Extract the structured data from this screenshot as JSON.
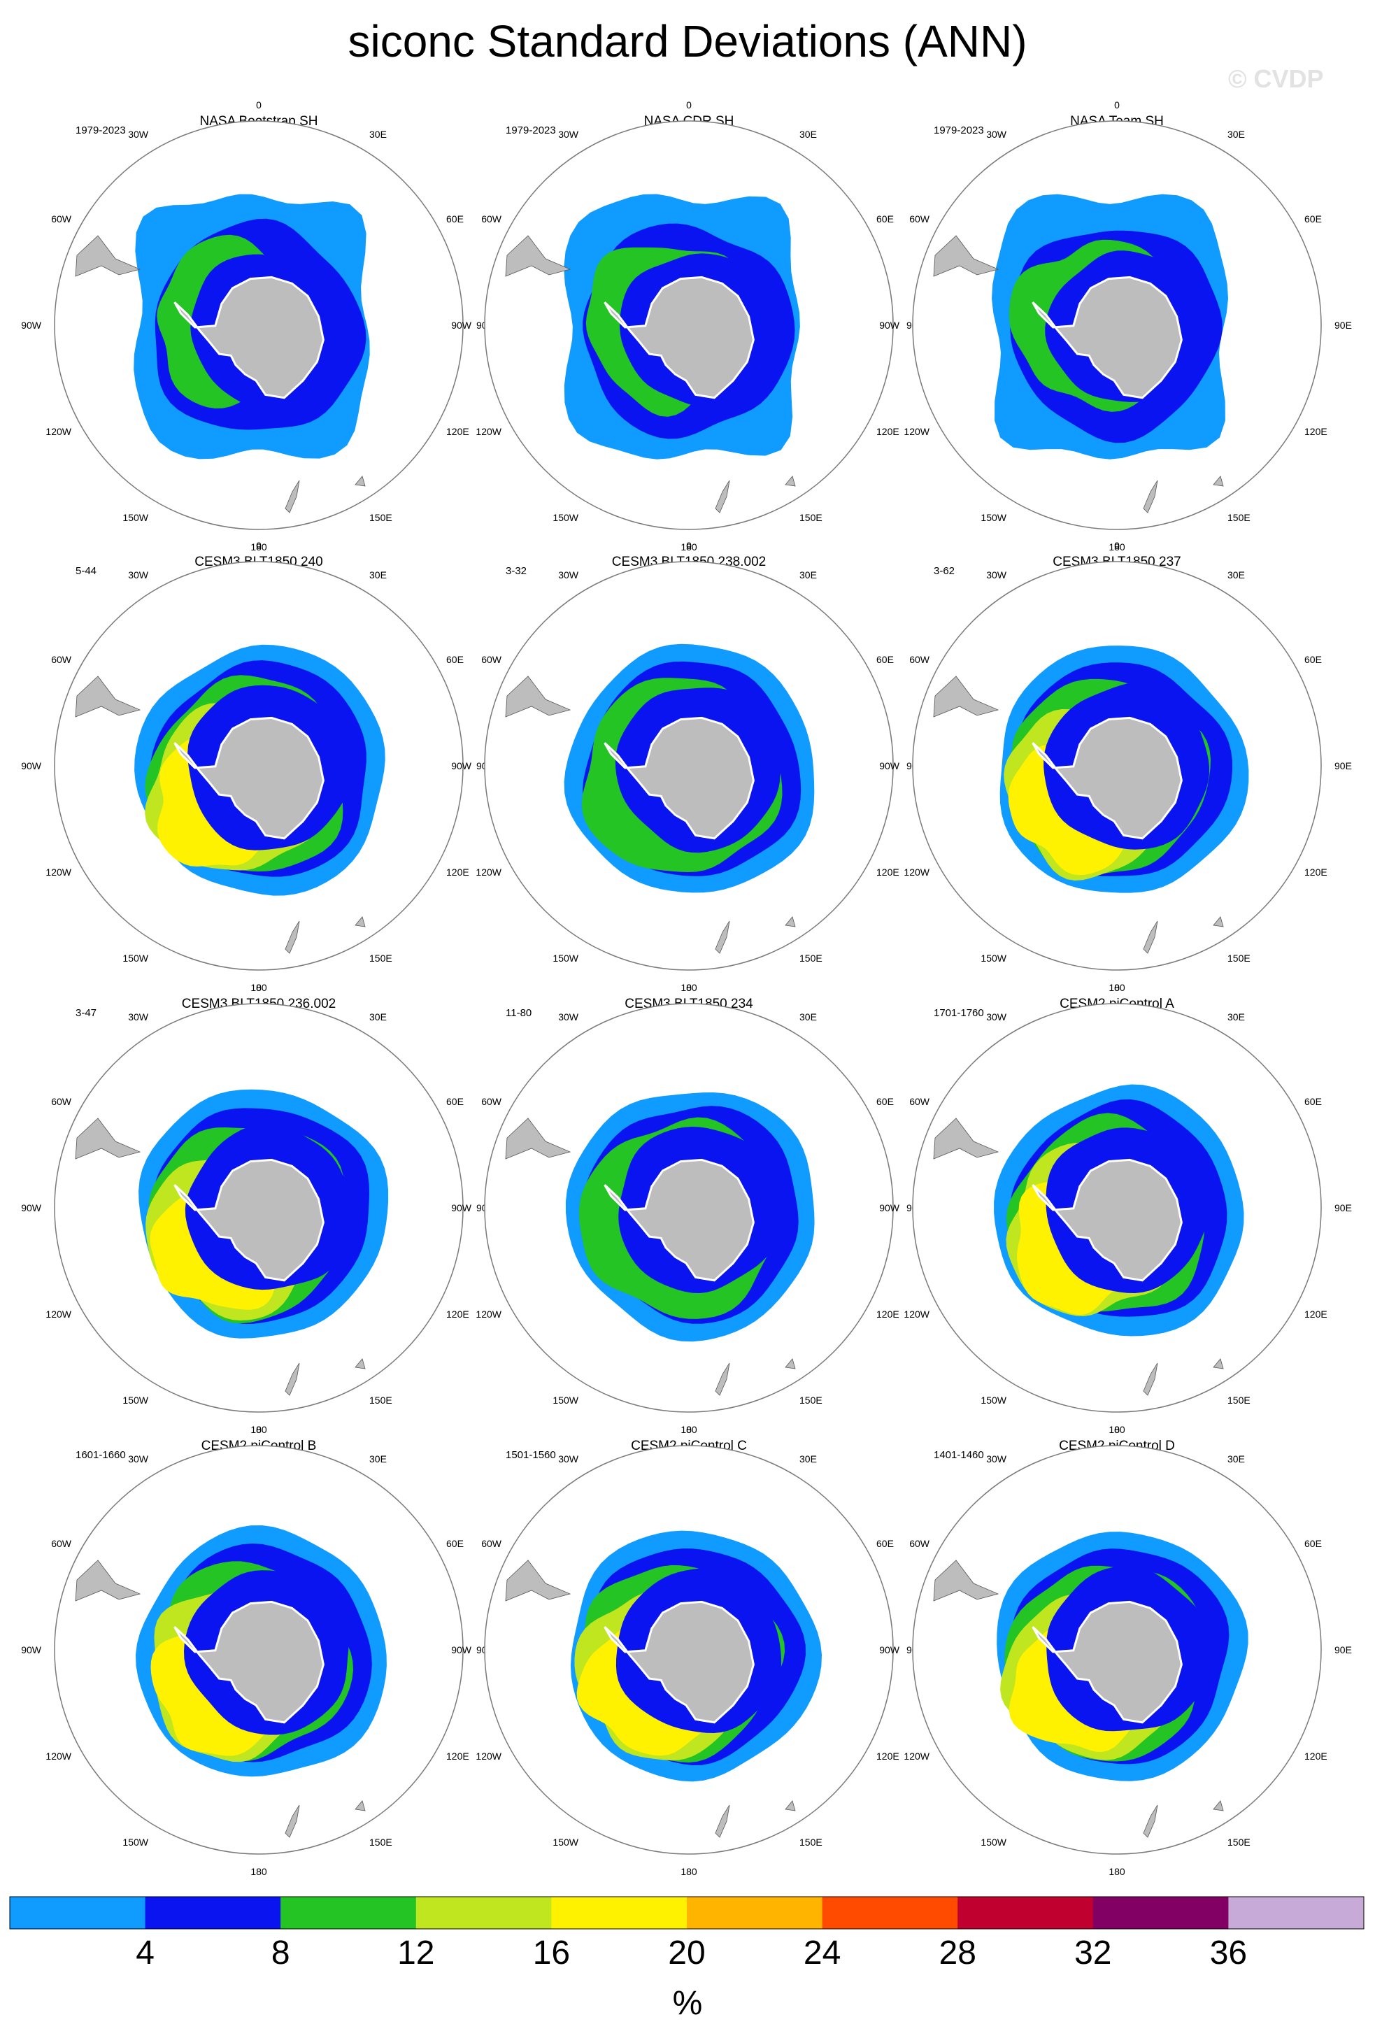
{
  "title": "siconc Standard Deviations (ANN)",
  "watermark": "© CVDP",
  "longitude_labels": [
    "0",
    "30E",
    "60E",
    "90E",
    "120E",
    "150E",
    "180",
    "150W",
    "120W",
    "90W",
    "60W",
    "30W"
  ],
  "colors": {
    "land": "#bdbdbd",
    "circle": "#7a7a7a",
    "levels": [
      "#0f9bff",
      "#0a14f0",
      "#23c423",
      "#bfe61e",
      "#fff200",
      "#ffb400",
      "#ff4b00",
      "#c0002e",
      "#820064",
      "#c8aad8"
    ]
  },
  "panels": [
    {
      "title": "NASA Bootstrap SH",
      "years": "1979-2023",
      "variant": "obs"
    },
    {
      "title": "NASA CDR SH",
      "years": "1979-2023",
      "variant": "obs"
    },
    {
      "title": "NASA Team SH",
      "years": "1979-2023",
      "variant": "obs"
    },
    {
      "title": "CESM3 BLT1850 240",
      "years": "5-44",
      "variant": "model-high"
    },
    {
      "title": "CESM3 BLT1850 238.002",
      "years": "3-32",
      "variant": "model"
    },
    {
      "title": "CESM3 BLT1850 237",
      "years": "3-62",
      "variant": "model-high"
    },
    {
      "title": "CESM3 BLT1850 236.002",
      "years": "3-47",
      "variant": "model-high"
    },
    {
      "title": "CESM3 BLT1850 234",
      "years": "11-80",
      "variant": "model"
    },
    {
      "title": "CESM2 piControl A",
      "years": "1701-1760",
      "variant": "model-high"
    },
    {
      "title": "CESM2 piControl B",
      "years": "1601-1660",
      "variant": "model-high"
    },
    {
      "title": "CESM2 piControl C",
      "years": "1501-1560",
      "variant": "model-high"
    },
    {
      "title": "CESM2 piControl D",
      "years": "1401-1460",
      "variant": "model-high"
    }
  ],
  "colorbar": {
    "ticks": [
      "4",
      "8",
      "12",
      "16",
      "20",
      "24",
      "28",
      "32",
      "36"
    ],
    "units": "%"
  }
}
